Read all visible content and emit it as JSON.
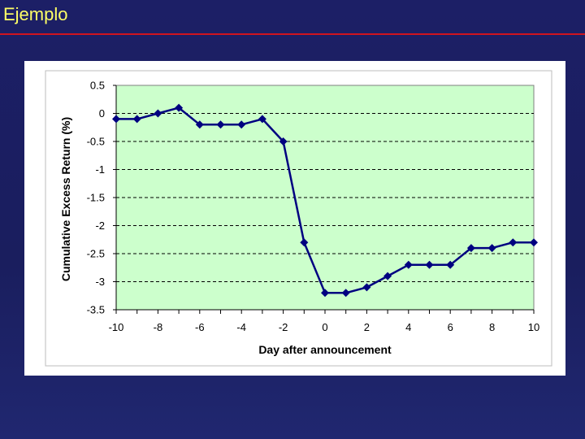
{
  "slide": {
    "title": "Ejemplo"
  },
  "colors": {
    "title": "#ffff66",
    "rule": "#d0141e",
    "plot_bg": "#ccffcc",
    "series": "#000080"
  },
  "chart_data": {
    "type": "line",
    "title": "",
    "xlabel": "Day after announcement",
    "ylabel": "Cumulative Excess Return (%)",
    "xlim": [
      -10,
      10
    ],
    "ylim": [
      -3.5,
      0.5
    ],
    "xticks": [
      -10,
      -8,
      -6,
      -4,
      -2,
      0,
      2,
      4,
      6,
      8,
      10
    ],
    "yticks": [
      0.5,
      0,
      -0.5,
      -1,
      -1.5,
      -2,
      -2.5,
      -3,
      -3.5
    ],
    "grid": true,
    "series": [
      {
        "x": [
          -10,
          -9,
          -8,
          -7,
          -6,
          -5,
          -4,
          -3,
          -2,
          -1,
          0,
          1,
          2,
          3,
          4,
          5,
          6,
          7,
          8,
          9,
          10
        ],
        "y": [
          -0.1,
          -0.1,
          0,
          0.1,
          -0.2,
          -0.2,
          -0.2,
          -0.1,
          -0.5,
          -2.3,
          -3.2,
          -3.2,
          -3.1,
          -2.9,
          -2.7,
          -2.7,
          -2.7,
          -2.4,
          -2.4,
          -2.3,
          -2.3
        ]
      }
    ]
  }
}
